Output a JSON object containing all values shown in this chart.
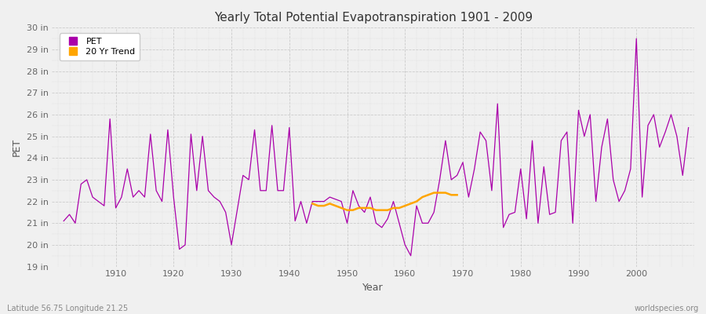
{
  "title": "Yearly Total Potential Evapotranspiration 1901 - 2009",
  "xlabel": "Year",
  "ylabel": "PET",
  "footer_left": "Latitude 56.75 Longitude 21.25",
  "footer_right": "worldspecies.org",
  "ylim": [
    19,
    30
  ],
  "ytick_labels": [
    "19 in",
    "20 in",
    "21 in",
    "22 in",
    "23 in",
    "24 in",
    "25 in",
    "26 in",
    "27 in",
    "28 in",
    "29 in",
    "30 in"
  ],
  "ytick_values": [
    19,
    20,
    21,
    22,
    23,
    24,
    25,
    26,
    27,
    28,
    29,
    30
  ],
  "xlim": [
    1899,
    2010
  ],
  "background_color": "#f0f0f0",
  "plot_bg_color": "#f0f0f0",
  "pet_color": "#aa00aa",
  "trend_color": "#ffa500",
  "legend_pet": "PET",
  "legend_trend": "20 Yr Trend",
  "years": [
    1901,
    1902,
    1903,
    1904,
    1905,
    1906,
    1907,
    1908,
    1909,
    1910,
    1911,
    1912,
    1913,
    1914,
    1915,
    1916,
    1917,
    1918,
    1919,
    1920,
    1921,
    1922,
    1923,
    1924,
    1925,
    1926,
    1927,
    1928,
    1929,
    1930,
    1931,
    1932,
    1933,
    1934,
    1935,
    1936,
    1937,
    1938,
    1939,
    1940,
    1941,
    1942,
    1943,
    1944,
    1945,
    1946,
    1947,
    1948,
    1949,
    1950,
    1951,
    1952,
    1953,
    1954,
    1955,
    1956,
    1957,
    1958,
    1959,
    1960,
    1961,
    1962,
    1963,
    1964,
    1965,
    1966,
    1967,
    1968,
    1969,
    1970,
    1971,
    1972,
    1973,
    1974,
    1975,
    1976,
    1977,
    1978,
    1979,
    1980,
    1981,
    1982,
    1983,
    1984,
    1985,
    1986,
    1987,
    1988,
    1989,
    1990,
    1991,
    1992,
    1993,
    1994,
    1995,
    1996,
    1997,
    1998,
    1999,
    2000,
    2001,
    2002,
    2003,
    2004,
    2005,
    2006,
    2007,
    2008,
    2009
  ],
  "pet_values": [
    21.1,
    21.4,
    21.0,
    22.8,
    23.0,
    22.2,
    22.0,
    21.8,
    25.8,
    21.7,
    22.2,
    23.5,
    22.2,
    22.5,
    22.2,
    25.1,
    22.5,
    22.0,
    25.3,
    22.2,
    19.8,
    20.0,
    25.1,
    22.5,
    25.0,
    22.5,
    22.2,
    22.0,
    21.5,
    20.0,
    21.6,
    23.2,
    23.0,
    25.3,
    22.5,
    22.5,
    25.5,
    22.5,
    22.5,
    25.4,
    21.1,
    22.0,
    21.0,
    22.0,
    22.0,
    22.0,
    22.2,
    22.1,
    22.0,
    21.0,
    22.5,
    21.8,
    21.5,
    22.2,
    21.0,
    20.8,
    21.2,
    22.0,
    21.0,
    20.0,
    19.5,
    21.8,
    21.0,
    21.0,
    21.5,
    23.0,
    24.8,
    23.0,
    23.2,
    23.8,
    22.2,
    23.5,
    25.2,
    24.8,
    22.5,
    26.5,
    20.8,
    21.4,
    21.5,
    23.5,
    21.2,
    24.8,
    21.0,
    23.6,
    21.4,
    21.5,
    24.8,
    25.2,
    21.0,
    26.2,
    25.0,
    26.0,
    22.0,
    24.5,
    25.8,
    23.0,
    22.0,
    22.5,
    23.5,
    29.5,
    22.2,
    25.5,
    26.0,
    24.5,
    25.2,
    26.0,
    25.0,
    23.2,
    25.4
  ],
  "trend_years": [
    1944,
    1945,
    1946,
    1947,
    1948,
    1949,
    1950,
    1951,
    1952,
    1953,
    1954,
    1955,
    1956,
    1957,
    1958,
    1959,
    1960,
    1961,
    1962,
    1963,
    1964,
    1965,
    1966,
    1967,
    1968,
    1969
  ],
  "trend_values": [
    21.9,
    21.8,
    21.8,
    21.9,
    21.8,
    21.7,
    21.6,
    21.6,
    21.7,
    21.7,
    21.7,
    21.6,
    21.6,
    21.6,
    21.7,
    21.7,
    21.8,
    21.9,
    22.0,
    22.2,
    22.3,
    22.4,
    22.4,
    22.4,
    22.3,
    22.3
  ]
}
